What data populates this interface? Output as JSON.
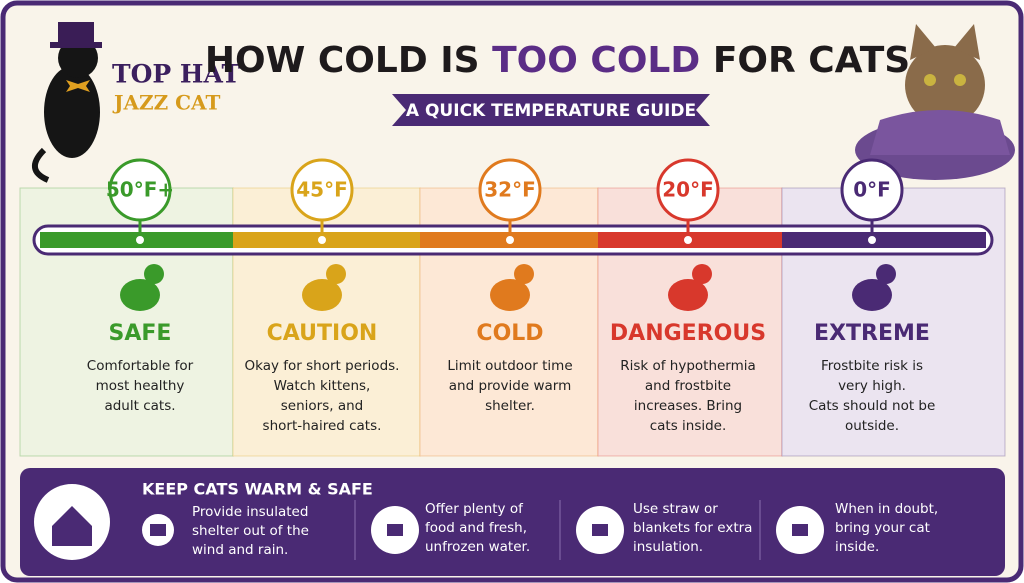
{
  "brand": {
    "line1": "TOP HAT",
    "line2": "JAZZ CAT"
  },
  "header": {
    "title_start": "HOW COLD IS",
    "title_highlight": "TOO COLD",
    "title_end": "FOR CATS?",
    "subtitle": "A QUICK TEMPERATURE GUIDE"
  },
  "zones": [
    {
      "temp": "50°F+",
      "label": "SAFE",
      "text": [
        "Comfortable for",
        "most healthy",
        "adult cats."
      ]
    },
    {
      "temp": "45°F",
      "label": "CAUTION",
      "text": [
        "Okay for short periods.",
        "Watch kittens,",
        "seniors, and",
        "short-haired cats."
      ]
    },
    {
      "temp": "32°F",
      "label": "COLD",
      "text": [
        "Limit outdoor time",
        "and provide warm",
        "shelter."
      ]
    },
    {
      "temp": "20°F",
      "label": "DANGEROUS",
      "text": [
        "Risk of hypothermia",
        "and frostbite",
        "increases. Bring",
        "cats inside."
      ]
    },
    {
      "temp": "0°F",
      "label": "EXTREME",
      "text": [
        "Frostbite risk is",
        "very high.",
        "Cats should not be",
        "outside."
      ]
    }
  ],
  "tips": {
    "title": "KEEP CATS WARM & SAFE",
    "items": [
      {
        "text": [
          "Provide insulated",
          "shelter out of the",
          "wind and rain."
        ]
      },
      {
        "text": [
          "Offer plenty of",
          "food and fresh,",
          "unfrozen water."
        ]
      },
      {
        "text": [
          "Use straw or",
          "blankets for extra",
          "insulation."
        ]
      },
      {
        "text": [
          "When in doubt,",
          "bring your cat",
          "inside."
        ]
      }
    ]
  }
}
